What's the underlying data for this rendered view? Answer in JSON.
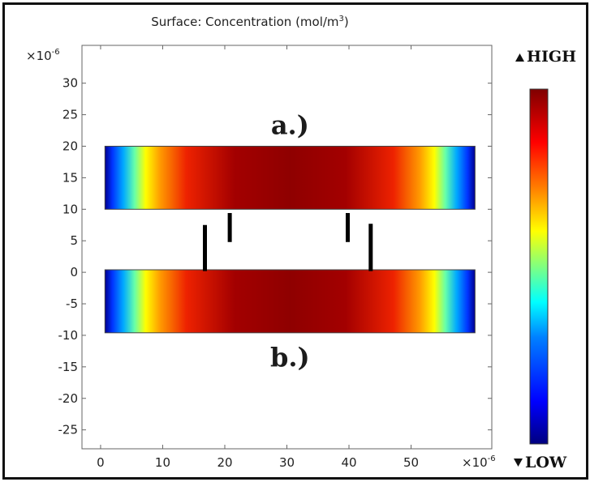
{
  "chart_data": {
    "type": "heatmap",
    "title": "Surface: Concentration (mol/m",
    "title_sup": "3",
    "title_end": ")",
    "xlabel": "",
    "ylabel": "",
    "x_multiplier": "×10",
    "y_multiplier": "×10",
    "multiplier_exp": "-6",
    "xlim": [
      -3,
      63
    ],
    "ylim": [
      -28,
      36
    ],
    "x_ticks": [
      0,
      10,
      20,
      30,
      40,
      50
    ],
    "y_ticks": [
      30,
      25,
      20,
      15,
      10,
      5,
      0,
      -5,
      -10,
      -15,
      -20,
      -25
    ],
    "grid": false,
    "rectangles": [
      {
        "label": "a.)",
        "x": [
          0.7,
          60.3
        ],
        "y": [
          10,
          20
        ]
      },
      {
        "label": "b.)",
        "x": [
          0.7,
          60.3
        ],
        "y": [
          -9.6,
          0.4
        ]
      }
    ],
    "electrodes": [
      {
        "x": 16.8,
        "y": [
          0.2,
          7.5
        ]
      },
      {
        "x": 20.8,
        "y": [
          4.8,
          9.4
        ]
      },
      {
        "x": 39.8,
        "y": [
          4.8,
          9.4
        ]
      },
      {
        "x": 43.5,
        "y": [
          0.2,
          7.7
        ]
      }
    ],
    "colorbar": {
      "high_label": "HIGH",
      "low_label": "LOW",
      "high_icon": "triangle-up-icon",
      "low_icon": "triangle-down-icon",
      "colormap": [
        "#00007f",
        "#0000ff",
        "#0080ff",
        "#00ffff",
        "#80ff80",
        "#ffff00",
        "#ff8000",
        "#ff0000",
        "#7f0000"
      ]
    }
  }
}
